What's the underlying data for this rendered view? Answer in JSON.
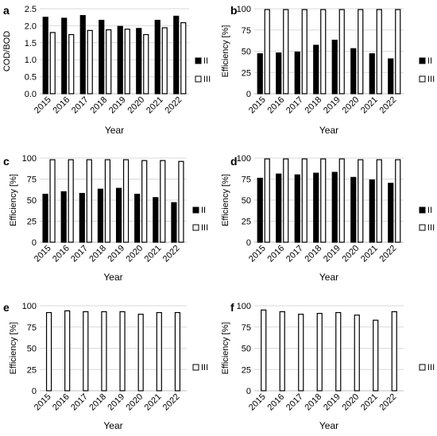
{
  "panels": [
    {
      "label": "a",
      "type": "bar",
      "ylabel": "COD/BOD",
      "xlabel": "Year",
      "ylim": [
        0,
        2.5
      ],
      "yticks": [
        "0.0",
        "0.5",
        "1.0",
        "1.5",
        "2.0",
        "2.5"
      ],
      "categories": [
        "2015",
        "2016",
        "2017",
        "2018",
        "2019",
        "2020",
        "2021",
        "2022"
      ],
      "series": [
        {
          "name": "II",
          "fill": "black",
          "values": [
            2.25,
            2.22,
            2.3,
            2.16,
            1.98,
            1.92,
            2.16,
            2.28
          ]
        },
        {
          "name": "III",
          "fill": "white",
          "values": [
            1.8,
            1.74,
            1.86,
            1.88,
            1.9,
            1.74,
            1.94,
            2.09
          ]
        }
      ]
    },
    {
      "label": "b",
      "type": "bar",
      "ylabel": "Efficiency [%]",
      "xlabel": "Year",
      "ylim": [
        0,
        100
      ],
      "yticks": [
        "0",
        "25",
        "50",
        "75",
        "100"
      ],
      "categories": [
        "2015",
        "2016",
        "2017",
        "2018",
        "2019",
        "2020",
        "2021",
        "2022"
      ],
      "series": [
        {
          "name": "II",
          "fill": "black",
          "values": [
            47,
            48,
            49,
            57,
            63,
            53,
            47,
            41
          ]
        },
        {
          "name": "III",
          "fill": "white",
          "values": [
            99,
            99,
            99,
            99,
            99,
            99,
            99,
            99
          ]
        }
      ]
    },
    {
      "label": "c",
      "type": "bar",
      "ylabel": "Efficiency [%]",
      "xlabel": "Year",
      "ylim": [
        0,
        100
      ],
      "yticks": [
        "0",
        "25",
        "50",
        "75",
        "100"
      ],
      "categories": [
        "2015",
        "2016",
        "2017",
        "2018",
        "2019",
        "2020",
        "2021",
        "2022"
      ],
      "series": [
        {
          "name": "II",
          "fill": "black",
          "values": [
            57,
            60,
            58,
            63,
            64,
            57,
            53,
            47
          ]
        },
        {
          "name": "III",
          "fill": "white",
          "values": [
            98,
            98,
            98,
            98,
            98,
            97,
            97,
            96
          ]
        }
      ]
    },
    {
      "label": "d",
      "type": "bar",
      "ylabel": "Efficiency [%]",
      "xlabel": "Year",
      "ylim": [
        0,
        100
      ],
      "yticks": [
        "0",
        "25",
        "50",
        "75",
        "100"
      ],
      "categories": [
        "2015",
        "2016",
        "2017",
        "2018",
        "2019",
        "2020",
        "2021",
        "2022"
      ],
      "series": [
        {
          "name": "II",
          "fill": "black",
          "values": [
            76,
            81,
            80,
            82,
            83,
            77,
            74,
            70
          ]
        },
        {
          "name": "III",
          "fill": "white",
          "values": [
            99,
            99,
            99,
            99,
            99,
            98,
            98,
            98
          ]
        }
      ]
    },
    {
      "label": "e",
      "type": "bar",
      "ylabel": "Efficiency [%]",
      "xlabel": "Year",
      "ylim": [
        0,
        100
      ],
      "yticks": [
        "0",
        "25",
        "50",
        "75",
        "100"
      ],
      "categories": [
        "2015",
        "2016",
        "2017",
        "2018",
        "2019",
        "2020",
        "2021",
        "2022"
      ],
      "series": [
        {
          "name": "III",
          "fill": "white",
          "values": [
            92,
            94,
            93,
            93,
            93,
            90,
            92,
            92
          ]
        }
      ]
    },
    {
      "label": "f",
      "type": "bar",
      "ylabel": "Efficiency [%]",
      "xlabel": "Year",
      "ylim": [
        0,
        100
      ],
      "yticks": [
        "0",
        "25",
        "50",
        "75",
        "100"
      ],
      "categories": [
        "2015",
        "2016",
        "2017",
        "2018",
        "2019",
        "2020",
        "2021",
        "2022"
      ],
      "series": [
        {
          "name": "III",
          "fill": "white",
          "values": [
            95,
            93,
            90,
            91,
            92,
            89,
            83,
            93
          ]
        }
      ]
    }
  ]
}
